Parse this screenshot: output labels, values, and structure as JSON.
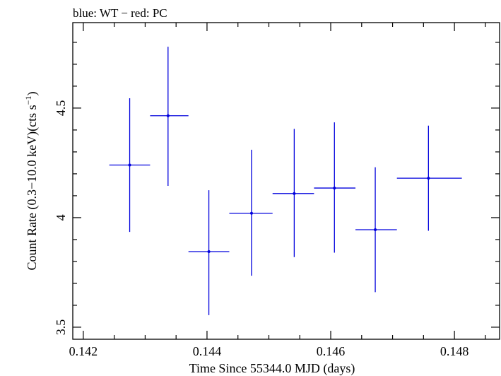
{
  "chart_data": {
    "type": "scatter",
    "title": "blue: WT − red: PC",
    "xlabel": "Time Since 55344.0 MJD (days)",
    "ylabel_main": "Count Rate (0.3−10.0 keV)(cts s",
    "ylabel_sup": "−1",
    "ylabel_end": ")",
    "xlim": [
      0.14183,
      0.14873
    ],
    "ylim": [
      3.445,
      4.89
    ],
    "xticks": [
      0.142,
      0.144,
      0.146,
      0.148
    ],
    "xtick_labels": [
      "0.142",
      "0.144",
      "0.146",
      "0.148"
    ],
    "xminor_step": 0.0005,
    "yticks": [
      3.5,
      4,
      4.5
    ],
    "ytick_labels": [
      "3.5",
      "4",
      "4.5"
    ],
    "yminor_step": 0.1,
    "grid": false,
    "series": [
      {
        "color": "#0000dd",
        "points": [
          {
            "x": 0.14275,
            "xlo": 0.14242,
            "xhi": 0.14308,
            "y": 4.24,
            "ylo": 3.935,
            "yhi": 4.545
          },
          {
            "x": 0.14337,
            "xlo": 0.14308,
            "xhi": 0.1437,
            "y": 4.465,
            "ylo": 4.145,
            "yhi": 4.78
          },
          {
            "x": 0.14403,
            "xlo": 0.1437,
            "xhi": 0.14436,
            "y": 3.845,
            "ylo": 3.555,
            "yhi": 4.125
          },
          {
            "x": 0.14472,
            "xlo": 0.14436,
            "xhi": 0.14506,
            "y": 4.02,
            "ylo": 3.735,
            "yhi": 4.31
          },
          {
            "x": 0.14541,
            "xlo": 0.14506,
            "xhi": 0.14573,
            "y": 4.11,
            "ylo": 3.82,
            "yhi": 4.405
          },
          {
            "x": 0.14606,
            "xlo": 0.14573,
            "xhi": 0.1464,
            "y": 4.135,
            "ylo": 3.84,
            "yhi": 4.435
          },
          {
            "x": 0.14672,
            "xlo": 0.1464,
            "xhi": 0.14707,
            "y": 3.945,
            "ylo": 3.66,
            "yhi": 4.23
          },
          {
            "x": 0.14758,
            "xlo": 0.14707,
            "xhi": 0.14812,
            "y": 4.18,
            "ylo": 3.94,
            "yhi": 4.42
          }
        ]
      }
    ]
  }
}
